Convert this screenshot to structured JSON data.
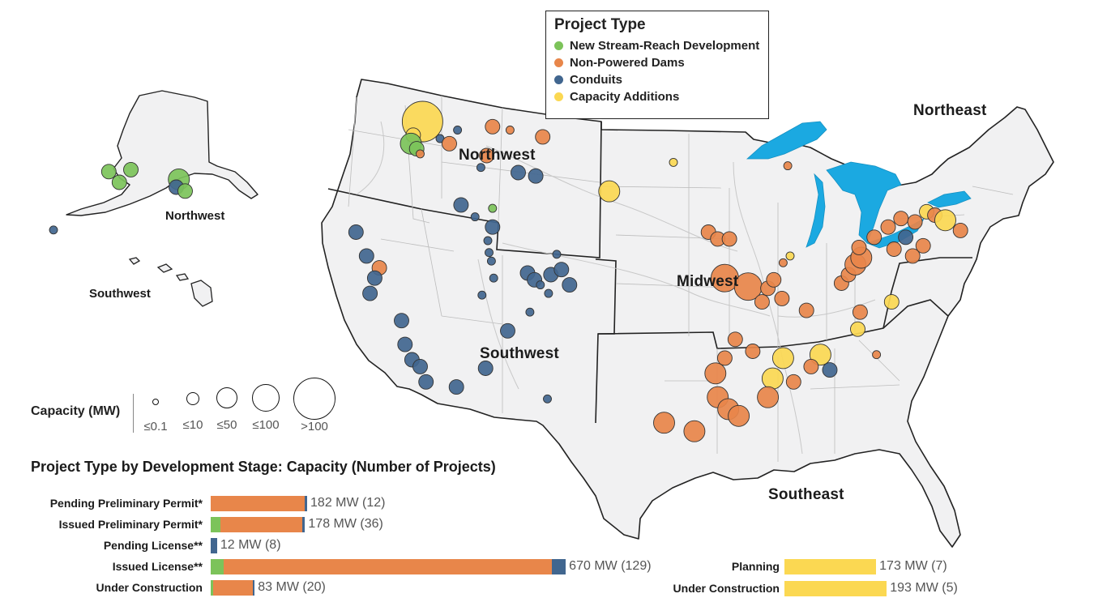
{
  "legend": {
    "title": "Project Type",
    "items": [
      {
        "label": "New Stream-Reach Development",
        "color": "#7cc35a"
      },
      {
        "label": "Non-Powered Dams",
        "color": "#e8864a"
      },
      {
        "label": "Conduits",
        "color": "#41668f"
      },
      {
        "label": "Capacity Additions",
        "color": "#fbd852"
      }
    ]
  },
  "regions": {
    "northwest": "Northwest",
    "southwest": "Southwest",
    "midwest": "Midwest",
    "northeast": "Northeast",
    "southeast": "Southeast",
    "inset_northwest": "Northwest",
    "inset_southwest": "Southwest"
  },
  "capacity_legend": {
    "title": "Capacity (MW)",
    "sizes": [
      "≤0.1",
      "≤10",
      "≤50",
      "≤100",
      ">100"
    ]
  },
  "chart_data": {
    "type": "bar",
    "title": "Project Type by Development Stage: Capacity (Number of Projects)",
    "units": "MW",
    "series_colors": {
      "New Stream-Reach Development": "#7cc35a",
      "Non-Powered Dams": "#e8864a",
      "Conduits": "#41668f",
      "Capacity Additions": "#fbd852"
    },
    "left_group": [
      {
        "stage": "Pending Preliminary Permit*",
        "label": "182 MW (12)",
        "total": 182,
        "projects": 12,
        "segments": [
          {
            "type": "Non-Powered Dams",
            "value": 177
          },
          {
            "type": "Conduits",
            "value": 5
          }
        ]
      },
      {
        "stage": "Issued Preliminary Permit*",
        "label": "178 MW (36)",
        "total": 178,
        "projects": 36,
        "segments": [
          {
            "type": "New Stream-Reach Development",
            "value": 18
          },
          {
            "type": "Non-Powered Dams",
            "value": 155
          },
          {
            "type": "Conduits",
            "value": 5
          }
        ]
      },
      {
        "stage": "Pending License**",
        "label": "12 MW (8)",
        "total": 12,
        "projects": 8,
        "segments": [
          {
            "type": "Conduits",
            "value": 12
          }
        ]
      },
      {
        "stage": "Issued License**",
        "label": "670 MW (129)",
        "total": 670,
        "projects": 129,
        "segments": [
          {
            "type": "New Stream-Reach Development",
            "value": 24
          },
          {
            "type": "Non-Powered Dams",
            "value": 620
          },
          {
            "type": "Conduits",
            "value": 26
          }
        ]
      },
      {
        "stage": "Under Construction",
        "label": "83 MW (20)",
        "total": 83,
        "projects": 20,
        "segments": [
          {
            "type": "New Stream-Reach Development",
            "value": 4
          },
          {
            "type": "Non-Powered Dams",
            "value": 75
          },
          {
            "type": "Conduits",
            "value": 4
          }
        ]
      }
    ],
    "right_group": [
      {
        "stage": "Planning",
        "label": "173 MW (7)",
        "total": 173,
        "projects": 7,
        "segments": [
          {
            "type": "Capacity Additions",
            "value": 173
          }
        ]
      },
      {
        "stage": "Under Construction",
        "label": "193 MW (5)",
        "total": 193,
        "projects": 5,
        "segments": [
          {
            "type": "Capacity Additions",
            "value": 193
          }
        ]
      }
    ]
  },
  "map_points": [
    {
      "lon": -117.5,
      "lat": 48.5,
      "type": "Capacity Additions",
      "size": 5
    },
    {
      "lon": -118.3,
      "lat": 47.7,
      "type": "Capacity Additions",
      "size": 2
    },
    {
      "lon": -118.5,
      "lat": 47.2,
      "type": "New Stream-Reach Development",
      "size": 3
    },
    {
      "lon": -118.0,
      "lat": 46.9,
      "type": "New Stream-Reach Development",
      "size": 2
    },
    {
      "lon": -117.7,
      "lat": 46.6,
      "type": "Non-Powered Dams",
      "size": 1
    },
    {
      "lon": -116.0,
      "lat": 47.5,
      "type": "Conduits",
      "size": 1
    },
    {
      "lon": -115.2,
      "lat": 47.2,
      "type": "Non-Powered Dams",
      "size": 2
    },
    {
      "lon": -114.5,
      "lat": 48.0,
      "type": "Conduits",
      "size": 1
    },
    {
      "lon": -111.5,
      "lat": 48.2,
      "type": "Non-Powered Dams",
      "size": 2
    },
    {
      "lon": -110.0,
      "lat": 48.0,
      "type": "Non-Powered Dams",
      "size": 1
    },
    {
      "lon": -107.2,
      "lat": 47.6,
      "type": "Non-Powered Dams",
      "size": 2
    },
    {
      "lon": -112.0,
      "lat": 46.5,
      "type": "Non-Powered Dams",
      "size": 2
    },
    {
      "lon": -112.5,
      "lat": 45.8,
      "type": "Conduits",
      "size": 1
    },
    {
      "lon": -109.3,
      "lat": 45.5,
      "type": "Conduits",
      "size": 2
    },
    {
      "lon": -107.8,
      "lat": 45.3,
      "type": "Conduits",
      "size": 2
    },
    {
      "lon": -114.2,
      "lat": 43.6,
      "type": "Conduits",
      "size": 2
    },
    {
      "lon": -113.0,
      "lat": 42.9,
      "type": "Conduits",
      "size": 1
    },
    {
      "lon": -111.5,
      "lat": 43.4,
      "type": "New Stream-Reach Development",
      "size": 1
    },
    {
      "lon": -111.5,
      "lat": 42.3,
      "type": "Conduits",
      "size": 2
    },
    {
      "lon": -111.9,
      "lat": 41.5,
      "type": "Conduits",
      "size": 1
    },
    {
      "lon": -111.8,
      "lat": 40.8,
      "type": "Conduits",
      "size": 1
    },
    {
      "lon": -111.6,
      "lat": 40.3,
      "type": "Conduits",
      "size": 1
    },
    {
      "lon": -111.4,
      "lat": 39.3,
      "type": "Conduits",
      "size": 1
    },
    {
      "lon": -112.4,
      "lat": 38.3,
      "type": "Conduits",
      "size": 1
    },
    {
      "lon": -108.5,
      "lat": 39.6,
      "type": "Conduits",
      "size": 2
    },
    {
      "lon": -107.9,
      "lat": 39.2,
      "type": "Conduits",
      "size": 2
    },
    {
      "lon": -107.4,
      "lat": 38.9,
      "type": "Conduits",
      "size": 1
    },
    {
      "lon": -106.5,
      "lat": 39.5,
      "type": "Conduits",
      "size": 2
    },
    {
      "lon": -106.0,
      "lat": 40.7,
      "type": "Conduits",
      "size": 1
    },
    {
      "lon": -105.6,
      "lat": 39.8,
      "type": "Conduits",
      "size": 2
    },
    {
      "lon": -104.9,
      "lat": 38.9,
      "type": "Conduits",
      "size": 2
    },
    {
      "lon": -106.7,
      "lat": 38.4,
      "type": "Conduits",
      "size": 1
    },
    {
      "lon": -108.3,
      "lat": 37.3,
      "type": "Conduits",
      "size": 1
    },
    {
      "lon": -110.2,
      "lat": 36.2,
      "type": "Conduits",
      "size": 2
    },
    {
      "lon": -112.1,
      "lat": 34.0,
      "type": "Conduits",
      "size": 2
    },
    {
      "lon": -106.8,
      "lat": 32.2,
      "type": "Conduits",
      "size": 1
    },
    {
      "lon": -123.2,
      "lat": 42.0,
      "type": "Conduits",
      "size": 2
    },
    {
      "lon": -122.3,
      "lat": 40.6,
      "type": "Conduits",
      "size": 2
    },
    {
      "lon": -121.2,
      "lat": 39.9,
      "type": "Non-Powered Dams",
      "size": 2
    },
    {
      "lon": -121.6,
      "lat": 39.3,
      "type": "Conduits",
      "size": 2
    },
    {
      "lon": -122.0,
      "lat": 38.4,
      "type": "Conduits",
      "size": 2
    },
    {
      "lon": -119.3,
      "lat": 36.8,
      "type": "Conduits",
      "size": 2
    },
    {
      "lon": -119.0,
      "lat": 35.4,
      "type": "Conduits",
      "size": 2
    },
    {
      "lon": -118.4,
      "lat": 34.5,
      "type": "Conduits",
      "size": 2
    },
    {
      "lon": -117.7,
      "lat": 34.1,
      "type": "Conduits",
      "size": 2
    },
    {
      "lon": -117.2,
      "lat": 33.2,
      "type": "Conduits",
      "size": 2
    },
    {
      "lon": -114.6,
      "lat": 32.9,
      "type": "Conduits",
      "size": 2
    },
    {
      "lon": -101.5,
      "lat": 44.4,
      "type": "Capacity Additions",
      "size": 3
    },
    {
      "lon": -96.0,
      "lat": 46.1,
      "type": "Capacity Additions",
      "size": 1
    },
    {
      "lon": -93.0,
      "lat": 42.0,
      "type": "Non-Powered Dams",
      "size": 2
    },
    {
      "lon": -92.2,
      "lat": 41.6,
      "type": "Non-Powered Dams",
      "size": 2
    },
    {
      "lon": -91.2,
      "lat": 41.6,
      "type": "Non-Powered Dams",
      "size": 2
    },
    {
      "lon": -91.6,
      "lat": 39.3,
      "type": "Non-Powered Dams",
      "size": 4
    },
    {
      "lon": -89.6,
      "lat": 38.8,
      "type": "Non-Powered Dams",
      "size": 4
    },
    {
      "lon": -88.4,
      "lat": 37.9,
      "type": "Non-Powered Dams",
      "size": 2
    },
    {
      "lon": -87.9,
      "lat": 38.7,
      "type": "Non-Powered Dams",
      "size": 2
    },
    {
      "lon": -87.4,
      "lat": 39.2,
      "type": "Non-Powered Dams",
      "size": 2
    },
    {
      "lon": -86.6,
      "lat": 40.2,
      "type": "Non-Powered Dams",
      "size": 1
    },
    {
      "lon": -86.0,
      "lat": 40.6,
      "type": "Capacity Additions",
      "size": 1
    },
    {
      "lon": -86.2,
      "lat": 45.9,
      "type": "Non-Powered Dams",
      "size": 1
    },
    {
      "lon": -86.7,
      "lat": 38.1,
      "type": "Non-Powered Dams",
      "size": 2
    },
    {
      "lon": -84.6,
      "lat": 37.4,
      "type": "Non-Powered Dams",
      "size": 2
    },
    {
      "lon": -81.6,
      "lat": 39.0,
      "type": "Non-Powered Dams",
      "size": 2
    },
    {
      "lon": -81.0,
      "lat": 39.5,
      "type": "Non-Powered Dams",
      "size": 2
    },
    {
      "lon": -80.4,
      "lat": 40.1,
      "type": "Non-Powered Dams",
      "size": 3
    },
    {
      "lon": -79.9,
      "lat": 40.5,
      "type": "Non-Powered Dams",
      "size": 3
    },
    {
      "lon": -80.1,
      "lat": 41.1,
      "type": "Non-Powered Dams",
      "size": 2
    },
    {
      "lon": -78.8,
      "lat": 41.7,
      "type": "Non-Powered Dams",
      "size": 2
    },
    {
      "lon": -77.6,
      "lat": 42.3,
      "type": "Non-Powered Dams",
      "size": 2
    },
    {
      "lon": -76.5,
      "lat": 42.8,
      "type": "Non-Powered Dams",
      "size": 2
    },
    {
      "lon": -75.3,
      "lat": 42.6,
      "type": "Non-Powered Dams",
      "size": 2
    },
    {
      "lon": -74.3,
      "lat": 43.2,
      "type": "Capacity Additions",
      "size": 2
    },
    {
      "lon": -73.6,
      "lat": 43.0,
      "type": "Non-Powered Dams",
      "size": 2
    },
    {
      "lon": -72.7,
      "lat": 42.7,
      "type": "Capacity Additions",
      "size": 3
    },
    {
      "lon": -71.4,
      "lat": 42.1,
      "type": "Non-Powered Dams",
      "size": 2
    },
    {
      "lon": -74.6,
      "lat": 41.2,
      "type": "Non-Powered Dams",
      "size": 2
    },
    {
      "lon": -75.5,
      "lat": 40.6,
      "type": "Non-Powered Dams",
      "size": 2
    },
    {
      "lon": -76.1,
      "lat": 41.7,
      "type": "Conduits",
      "size": 2
    },
    {
      "lon": -77.1,
      "lat": 41.0,
      "type": "Non-Powered Dams",
      "size": 2
    },
    {
      "lon": -80.0,
      "lat": 37.3,
      "type": "Non-Powered Dams",
      "size": 2
    },
    {
      "lon": -80.2,
      "lat": 36.3,
      "type": "Capacity Additions",
      "size": 2
    },
    {
      "lon": -83.4,
      "lat": 34.8,
      "type": "Capacity Additions",
      "size": 3
    },
    {
      "lon": -84.2,
      "lat": 34.1,
      "type": "Non-Powered Dams",
      "size": 2
    },
    {
      "lon": -85.7,
      "lat": 33.2,
      "type": "Non-Powered Dams",
      "size": 2
    },
    {
      "lon": -86.6,
      "lat": 34.6,
      "type": "Capacity Additions",
      "size": 3
    },
    {
      "lon": -87.5,
      "lat": 33.4,
      "type": "Capacity Additions",
      "size": 3
    },
    {
      "lon": -87.9,
      "lat": 32.3,
      "type": "Non-Powered Dams",
      "size": 3
    },
    {
      "lon": -89.2,
      "lat": 35.0,
      "type": "Non-Powered Dams",
      "size": 2
    },
    {
      "lon": -90.7,
      "lat": 35.7,
      "type": "Non-Powered Dams",
      "size": 2
    },
    {
      "lon": -91.6,
      "lat": 34.6,
      "type": "Non-Powered Dams",
      "size": 2
    },
    {
      "lon": -92.4,
      "lat": 33.7,
      "type": "Non-Powered Dams",
      "size": 3
    },
    {
      "lon": -92.2,
      "lat": 32.3,
      "type": "Non-Powered Dams",
      "size": 3
    },
    {
      "lon": -91.3,
      "lat": 31.6,
      "type": "Non-Powered Dams",
      "size": 3
    },
    {
      "lon": -90.4,
      "lat": 31.2,
      "type": "Non-Powered Dams",
      "size": 3
    },
    {
      "lon": -96.8,
      "lat": 30.8,
      "type": "Non-Powered Dams",
      "size": 3
    },
    {
      "lon": -94.2,
      "lat": 30.3,
      "type": "Non-Powered Dams",
      "size": 3
    },
    {
      "lon": -78.6,
      "lat": 34.8,
      "type": "Non-Powered Dams",
      "size": 1
    },
    {
      "lon": -82.6,
      "lat": 33.9,
      "type": "Conduits",
      "size": 2
    },
    {
      "lon": -77.3,
      "lat": 37.9,
      "type": "Capacity Additions",
      "size": 2
    }
  ],
  "alaska_points": [
    {
      "lon": -150.5,
      "lat": 61.6,
      "type": "New Stream-Reach Development",
      "size": 2
    },
    {
      "lon": -146.3,
      "lat": 61.8,
      "type": "New Stream-Reach Development",
      "size": 2
    },
    {
      "lon": -148.5,
      "lat": 60.5,
      "type": "New Stream-Reach Development",
      "size": 2
    },
    {
      "lon": -137.2,
      "lat": 60.8,
      "type": "New Stream-Reach Development",
      "size": 3
    },
    {
      "lon": -137.7,
      "lat": 60.0,
      "type": "Conduits",
      "size": 2
    },
    {
      "lon": -136.0,
      "lat": 59.6,
      "type": "New Stream-Reach Development",
      "size": 2
    },
    {
      "lon": -161.0,
      "lat": 55.6,
      "type": "Conduits",
      "size": 1
    }
  ]
}
